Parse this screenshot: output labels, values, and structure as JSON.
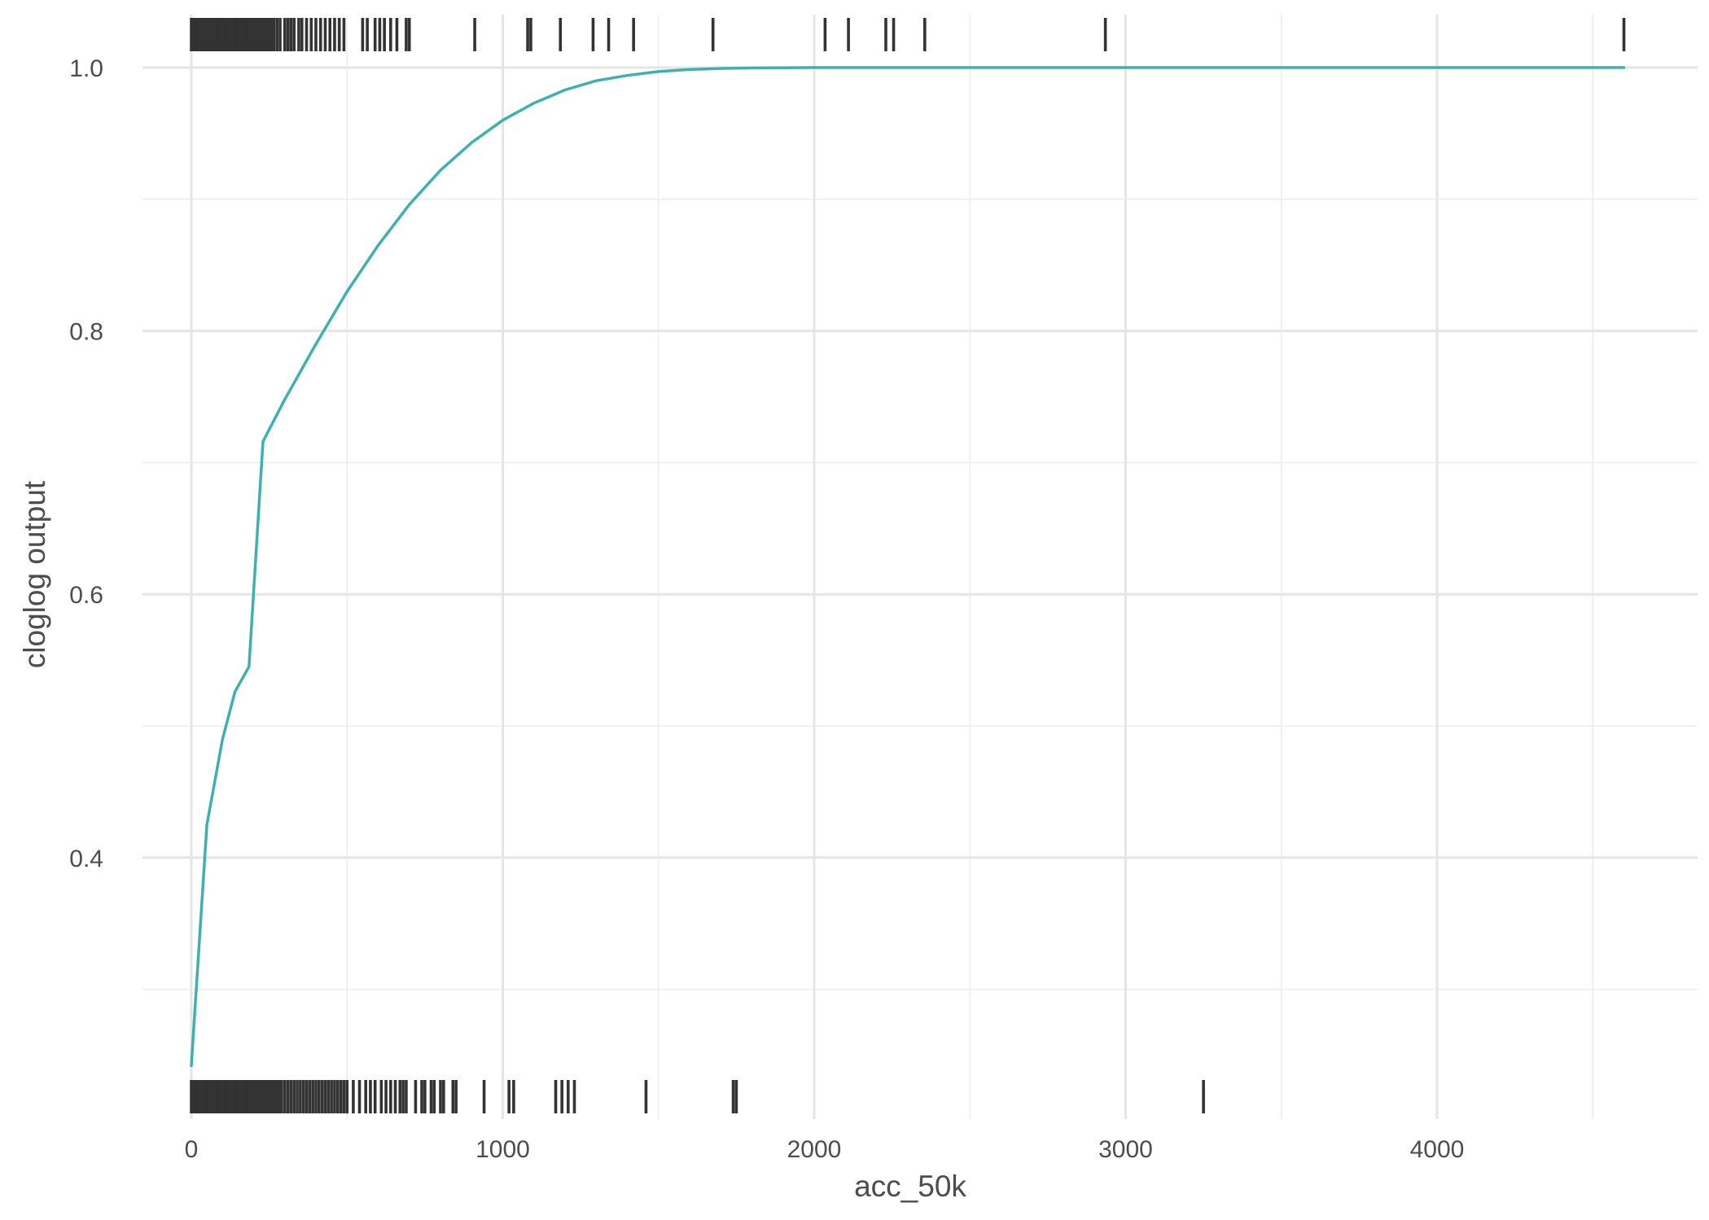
{
  "chart_data": {
    "type": "line",
    "title": "",
    "xlabel": "acc_50k",
    "ylabel": "cloglog output",
    "xlim": [
      -150,
      4800
    ],
    "ylim": [
      0.23,
      1.04
    ],
    "x_ticks": [
      0,
      1000,
      2000,
      3000,
      4000
    ],
    "x_tick_labels": [
      "0",
      "1000",
      "2000",
      "3000",
      "4000"
    ],
    "x_minor_ticks": [
      500,
      1500,
      2500,
      3500,
      4500
    ],
    "y_ticks": [
      0.4,
      0.6,
      0.8,
      1.0
    ],
    "y_tick_labels": [
      "0.4",
      "0.6",
      "0.8",
      "1.0"
    ],
    "y_minor_ticks": [
      0.3,
      0.5,
      0.7,
      0.9
    ],
    "grid": true,
    "legend": "none",
    "colors": {
      "line": "#3fb0b0",
      "rug": "#333333",
      "grid": "#e5e5e5"
    },
    "series": [
      {
        "x": [
          0,
          50,
          100,
          140,
          185,
          230,
          300,
          400,
          500,
          600,
          700,
          800,
          900,
          1000,
          1100,
          1200,
          1300,
          1400,
          1500,
          1600,
          1700,
          1800,
          1900,
          2000,
          2200,
          2500,
          3000,
          3500,
          4000,
          4600
        ],
        "y": [
          0.242,
          0.425,
          0.49,
          0.526,
          0.545,
          0.716,
          0.748,
          0.79,
          0.83,
          0.865,
          0.896,
          0.922,
          0.943,
          0.96,
          0.973,
          0.983,
          0.99,
          0.994,
          0.997,
          0.9985,
          0.9993,
          0.9997,
          0.9999,
          1.0,
          1.0,
          1.0,
          1.0,
          1.0,
          1.0,
          1.0
        ]
      }
    ],
    "rug_top": [
      0,
      5,
      10,
      15,
      20,
      25,
      30,
      35,
      40,
      45,
      50,
      55,
      60,
      65,
      70,
      75,
      80,
      85,
      90,
      95,
      100,
      108,
      115,
      122,
      130,
      138,
      145,
      152,
      160,
      168,
      175,
      182,
      190,
      198,
      205,
      212,
      220,
      228,
      235,
      242,
      250,
      258,
      265,
      275,
      285,
      300,
      310,
      320,
      330,
      345,
      355,
      370,
      385,
      400,
      415,
      430,
      445,
      460,
      475,
      490,
      550,
      565,
      590,
      605,
      620,
      640,
      660,
      690,
      700,
      910,
      1080,
      1090,
      1185,
      1290,
      1340,
      1420,
      1675,
      2035,
      2110,
      2230,
      2255,
      2355,
      2935,
      4600
    ],
    "rug_bottom": [
      0,
      4,
      8,
      12,
      16,
      20,
      24,
      28,
      32,
      36,
      40,
      44,
      48,
      52,
      56,
      60,
      64,
      68,
      72,
      76,
      80,
      85,
      90,
      95,
      100,
      105,
      110,
      115,
      120,
      125,
      130,
      135,
      140,
      145,
      150,
      155,
      160,
      165,
      170,
      175,
      180,
      185,
      190,
      195,
      200,
      206,
      212,
      218,
      224,
      230,
      236,
      242,
      248,
      254,
      260,
      266,
      272,
      278,
      284,
      290,
      300,
      310,
      320,
      330,
      340,
      350,
      360,
      370,
      380,
      390,
      400,
      410,
      420,
      430,
      440,
      450,
      460,
      470,
      480,
      490,
      500,
      520,
      540,
      560,
      575,
      590,
      610,
      625,
      640,
      655,
      670,
      680,
      690,
      720,
      740,
      750,
      770,
      780,
      800,
      810,
      840,
      850,
      940,
      1020,
      1035,
      1170,
      1190,
      1210,
      1230,
      1460,
      1740,
      1750,
      3250
    ]
  }
}
